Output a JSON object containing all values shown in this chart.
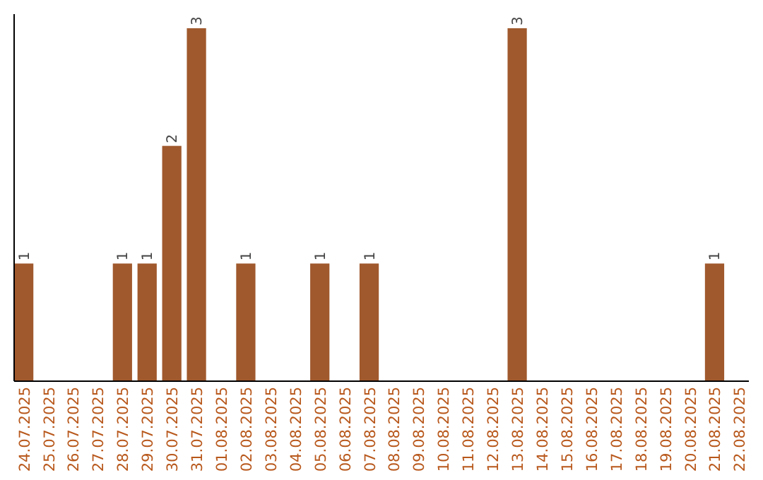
{
  "chart_data": {
    "type": "bar",
    "categories": [
      "24.07.2025",
      "25.07.2025",
      "26.07.2025",
      "27.07.2025",
      "28.07.2025",
      "29.07.2025",
      "30.07.2025",
      "31.07.2025",
      "01.08.2025",
      "02.08.2025",
      "03.08.2025",
      "04.08.2025",
      "05.08.2025",
      "06.08.2025",
      "07.08.2025",
      "08.08.2025",
      "09.08.2025",
      "10.08.2025",
      "11.08.2025",
      "12.08.2025",
      "13.08.2025",
      "14.08.2025",
      "15.08.2025",
      "16.08.2025",
      "17.08.2025",
      "18.08.2025",
      "19.08.2025",
      "20.08.2025",
      "21.08.2025",
      "22.08.2025"
    ],
    "values": [
      1,
      0,
      0,
      0,
      1,
      1,
      2,
      3,
      0,
      1,
      0,
      0,
      1,
      0,
      1,
      0,
      0,
      0,
      0,
      0,
      3,
      0,
      0,
      0,
      0,
      0,
      0,
      0,
      1,
      0
    ],
    "value_labels": [
      "1",
      null,
      null,
      null,
      "1",
      "1",
      "2",
      "3",
      null,
      "1",
      null,
      null,
      "1",
      null,
      "1",
      null,
      null,
      null,
      null,
      null,
      "3",
      null,
      null,
      null,
      null,
      null,
      null,
      null,
      "1",
      null
    ],
    "color": "#a0592d",
    "ylim": [
      0,
      3
    ],
    "tick_labels": "x"
  }
}
